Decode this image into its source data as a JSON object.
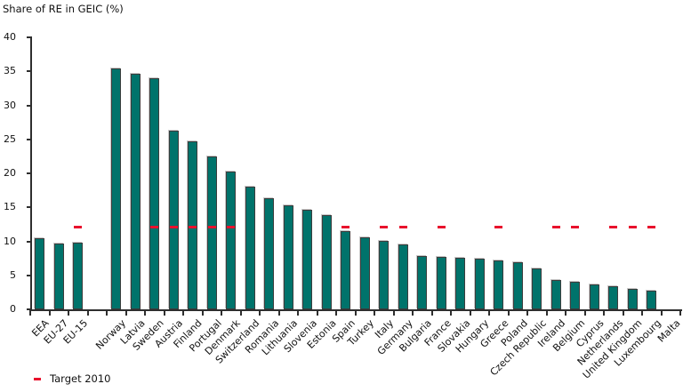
{
  "title": "Share of RE in GEIC (%)",
  "legend": {
    "target_label": "Target 2010"
  },
  "colors": {
    "bar": "#00736b",
    "bar_border": "#3d3d3d",
    "target": "#e8112d",
    "axis": "#2e2e2e",
    "text": "#111111"
  },
  "chart_data": {
    "type": "bar",
    "title": "Share of RE in GEIC (%)",
    "ylabel": "Share of RE in GEIC (%)",
    "xlabel": "",
    "ylim": [
      0,
      40
    ],
    "ytick_step": 5,
    "yticks": [
      0,
      5,
      10,
      15,
      20,
      25,
      30,
      35,
      40
    ],
    "grid": false,
    "legend_position": "bottom-left",
    "group_separator_after_index": 2,
    "categories": [
      "EEA",
      "EU-27",
      "EU-15",
      "Norway",
      "Latvia",
      "Sweden",
      "Austria",
      "Finland",
      "Portugal",
      "Denmark",
      "Switzerland",
      "Romania",
      "Lithuania",
      "Slovenia",
      "Estonia",
      "Spain",
      "Turkey",
      "Italy",
      "Germany",
      "Bulgaria",
      "France",
      "Slovakia",
      "Hungary",
      "Greece",
      "Poland",
      "Czech Republic",
      "Ireland",
      "Belgium",
      "Cyprus",
      "Netherlands",
      "United Kingdom",
      "Luxembourg",
      "Malta"
    ],
    "values": [
      10.5,
      9.7,
      9.8,
      35.4,
      34.7,
      34.0,
      26.3,
      24.7,
      22.5,
      20.2,
      18.0,
      16.3,
      15.3,
      14.7,
      13.8,
      11.5,
      10.6,
      10.1,
      9.5,
      7.8,
      7.7,
      7.6,
      7.4,
      7.2,
      6.9,
      6.0,
      4.3,
      4.0,
      3.6,
      3.4,
      3.0,
      2.7,
      0
    ],
    "series": [
      {
        "name": "Target 2010",
        "type": "dash-marker",
        "value_where_present": 12,
        "targets": [
          null,
          null,
          12,
          null,
          null,
          12,
          12,
          12,
          12,
          12,
          null,
          null,
          null,
          null,
          null,
          12,
          null,
          12,
          12,
          null,
          12,
          null,
          null,
          12,
          null,
          null,
          12,
          12,
          null,
          12,
          12,
          12,
          null
        ]
      }
    ]
  }
}
